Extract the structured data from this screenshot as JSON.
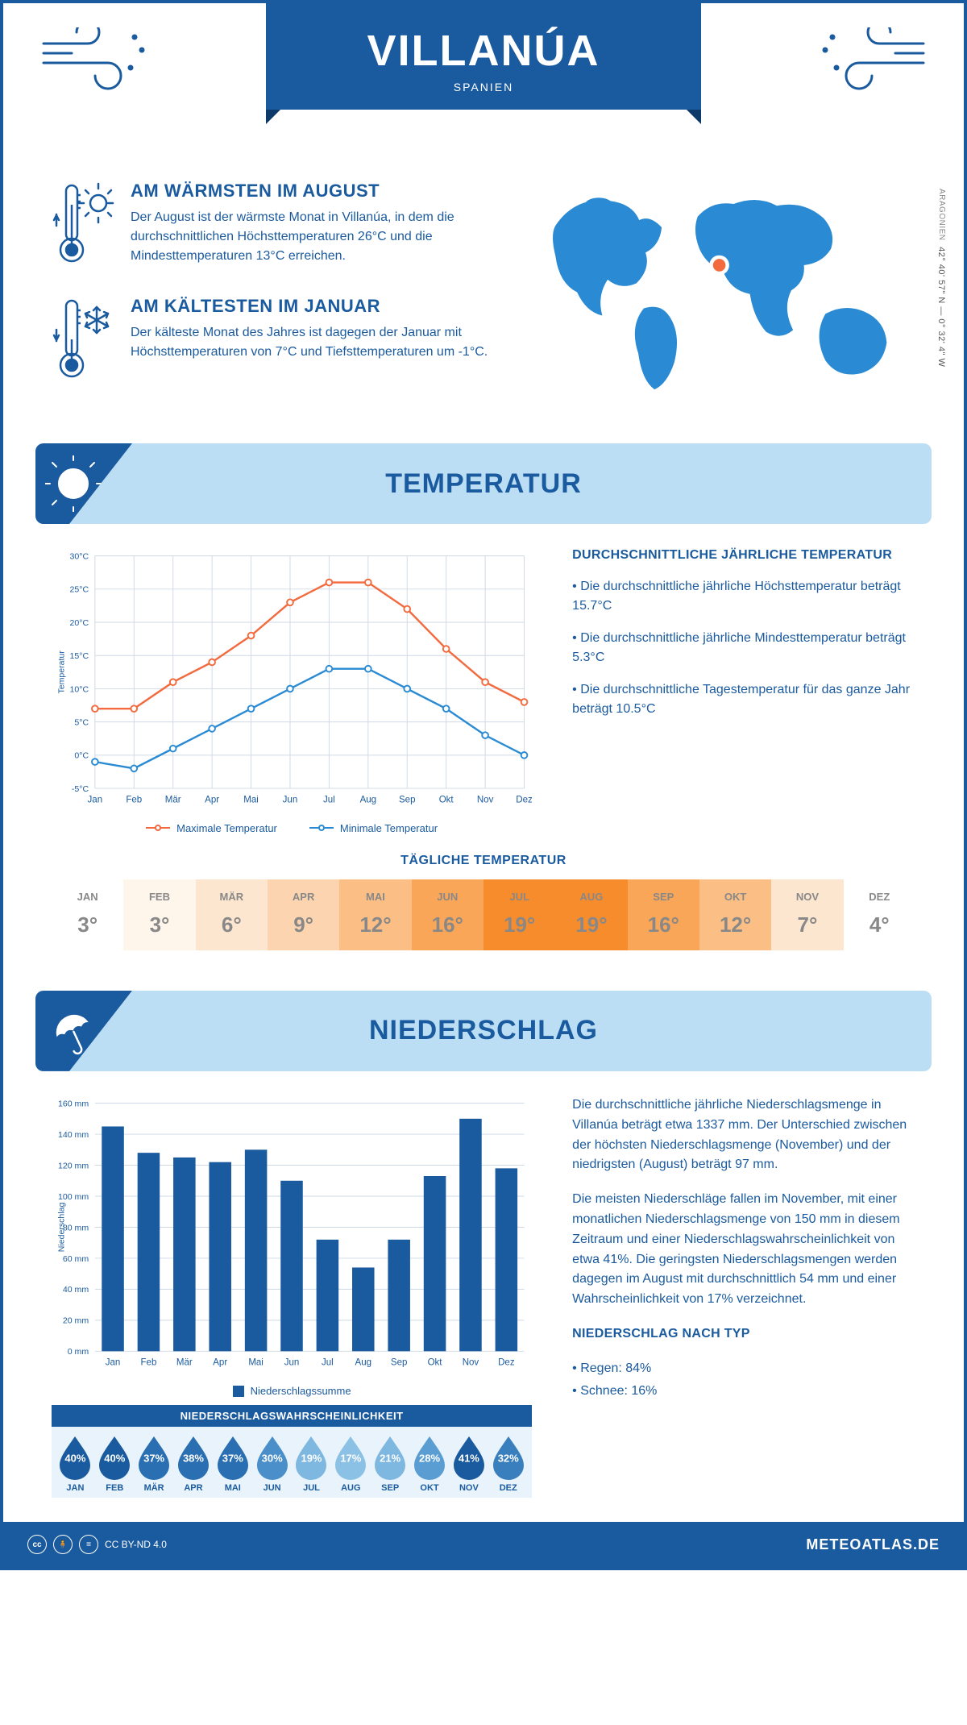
{
  "header": {
    "title": "VILLANÚA",
    "subtitle": "SPANIEN"
  },
  "coords": {
    "region": "ARAGONIEN",
    "text": "42° 40' 57\" N — 0° 32' 4\" W"
  },
  "facts": {
    "warm": {
      "title": "AM WÄRMSTEN IM AUGUST",
      "text": "Der August ist der wärmste Monat in Villanúa, in dem die durchschnittlichen Höchsttemperaturen 26°C und die Mindesttemperaturen 13°C erreichen."
    },
    "cold": {
      "title": "AM KÄLTESTEN IM JANUAR",
      "text": "Der kälteste Monat des Jahres ist dagegen der Januar mit Höchsttemperaturen von 7°C und Tiefsttemperaturen um -1°C."
    }
  },
  "temp_section": {
    "title": "TEMPERATUR"
  },
  "temp_chart": {
    "months": [
      "Jan",
      "Feb",
      "Mär",
      "Apr",
      "Mai",
      "Jun",
      "Jul",
      "Aug",
      "Sep",
      "Okt",
      "Nov",
      "Dez"
    ],
    "max_values": [
      7,
      7,
      11,
      14,
      18,
      23,
      26,
      26,
      22,
      16,
      11,
      8
    ],
    "min_values": [
      -1,
      -2,
      1,
      4,
      7,
      10,
      13,
      13,
      10,
      7,
      3,
      0
    ],
    "ylim": [
      -5,
      30
    ],
    "ytick_step": 5,
    "ylabel": "Temperatur",
    "max_color": "#f26a3d",
    "min_color": "#2a8bd4",
    "grid_color": "#cfd9e4",
    "legend_max": "Maximale Temperatur",
    "legend_min": "Minimale Temperatur"
  },
  "temp_info": {
    "title": "DURCHSCHNITTLICHE JÄHRLICHE TEMPERATUR",
    "b1": "• Die durchschnittliche jährliche Höchsttemperatur beträgt 15.7°C",
    "b2": "• Die durchschnittliche jährliche Mindesttemperatur beträgt 5.3°C",
    "b3": "• Die durchschnittliche Tagestemperatur für das ganze Jahr beträgt 10.5°C"
  },
  "daily": {
    "title": "TÄGLICHE TEMPERATUR",
    "months": [
      "JAN",
      "FEB",
      "MÄR",
      "APR",
      "MAI",
      "JUN",
      "JUL",
      "AUG",
      "SEP",
      "OKT",
      "NOV",
      "DEZ"
    ],
    "values": [
      "3°",
      "3°",
      "6°",
      "9°",
      "12°",
      "16°",
      "19°",
      "19°",
      "16°",
      "12°",
      "7°",
      "4°"
    ],
    "colors": [
      "#ffffff",
      "#fef5eb",
      "#fde6cf",
      "#fcd5b0",
      "#fbbf86",
      "#f9a659",
      "#f78c2c",
      "#f78c2c",
      "#f9a659",
      "#fbbf86",
      "#fde6cf",
      "#ffffff"
    ]
  },
  "precip_section": {
    "title": "NIEDERSCHLAG"
  },
  "precip_chart": {
    "months": [
      "Jan",
      "Feb",
      "Mär",
      "Apr",
      "Mai",
      "Jun",
      "Jul",
      "Aug",
      "Sep",
      "Okt",
      "Nov",
      "Dez"
    ],
    "values": [
      145,
      128,
      125,
      122,
      130,
      110,
      72,
      54,
      72,
      113,
      150,
      118
    ],
    "ylim": [
      0,
      160
    ],
    "ytick_step": 20,
    "ylabel": "Niederschlag",
    "bar_color": "#1a5a9e",
    "grid_color": "#cfd9e4",
    "legend": "Niederschlagssumme"
  },
  "precip_info": {
    "p1": "Die durchschnittliche jährliche Niederschlagsmenge in Villanúa beträgt etwa 1337 mm. Der Unterschied zwischen der höchsten Niederschlagsmenge (November) und der niedrigsten (August) beträgt 97 mm.",
    "p2": "Die meisten Niederschläge fallen im November, mit einer monatlichen Niederschlagsmenge von 150 mm in diesem Zeitraum und einer Niederschlagswahrscheinlichkeit von etwa 41%. Die geringsten Niederschlagsmengen werden dagegen im August mit durchschnittlich 54 mm und einer Wahrscheinlichkeit von 17% verzeichnet.",
    "type_title": "NIEDERSCHLAG NACH TYP",
    "type_rain": "• Regen: 84%",
    "type_snow": "• Schnee: 16%"
  },
  "prob": {
    "title": "NIEDERSCHLAGSWAHRSCHEINLICHKEIT",
    "months": [
      "JAN",
      "FEB",
      "MÄR",
      "APR",
      "MAI",
      "JUN",
      "JUL",
      "AUG",
      "SEP",
      "OKT",
      "NOV",
      "DEZ"
    ],
    "values": [
      "40%",
      "40%",
      "37%",
      "38%",
      "37%",
      "30%",
      "19%",
      "17%",
      "21%",
      "28%",
      "41%",
      "32%"
    ],
    "colors": [
      "#1a5a9e",
      "#1a5a9e",
      "#2a6fb1",
      "#2a6fb1",
      "#2a6fb1",
      "#4a8fc9",
      "#7eb7e0",
      "#8cc1e6",
      "#7eb7e0",
      "#5a9dd2",
      "#1a5a9e",
      "#3a7fbd"
    ]
  },
  "footer": {
    "license": "CC BY-ND 4.0",
    "site": "METEOATLAS.DE"
  },
  "colors": {
    "primary": "#1a5a9e",
    "light_blue": "#bcdef5",
    "map_blue": "#2a8bd4"
  }
}
